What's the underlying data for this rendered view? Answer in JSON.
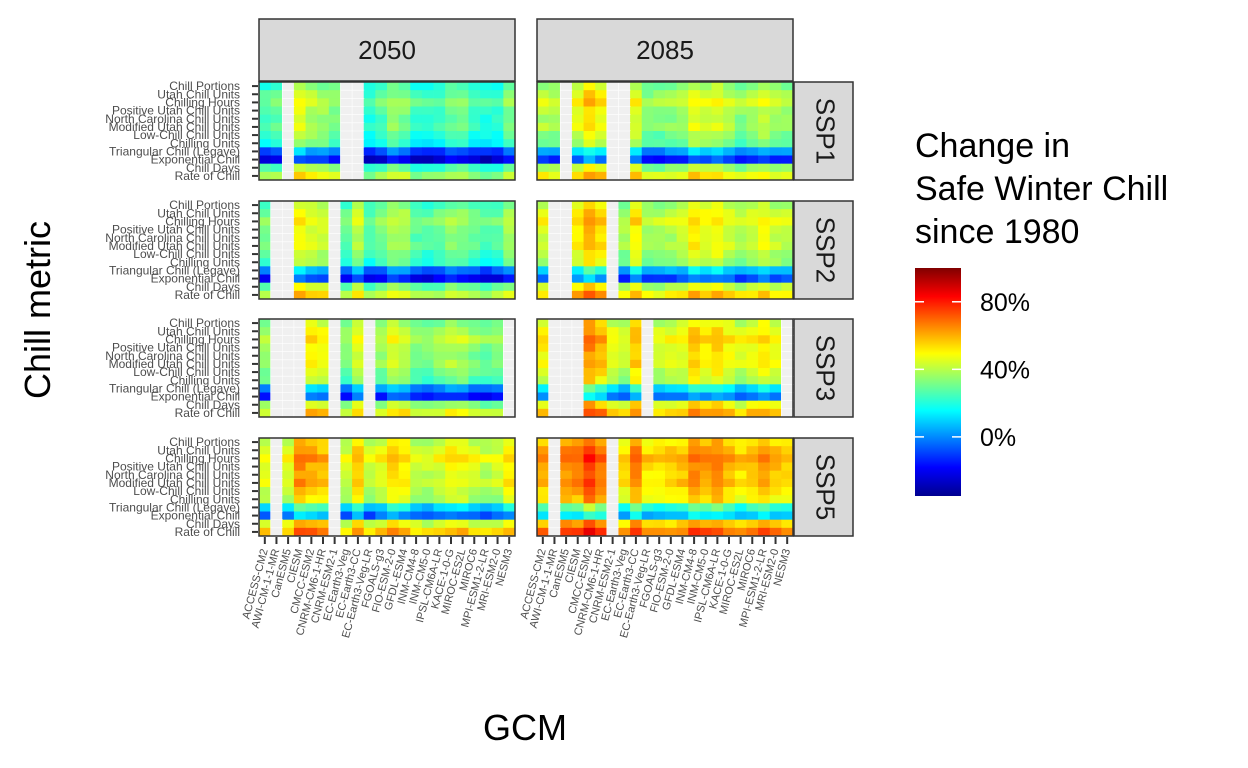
{
  "chart_data": {
    "type": "heatmap",
    "xlabel": "GCM",
    "ylabel": "Chill metric",
    "columns": [
      "2050",
      "2085"
    ],
    "rows": [
      "SSP1",
      "SSP2",
      "SSP3",
      "SSP5"
    ],
    "metrics": [
      "Chill Portions",
      "Utah Chill Units",
      "Chilling Hours",
      "Positive Utah Chill Units",
      "North Carolina Chill Units",
      "Modified Utah Chill Units",
      "Low-Chill Chill Units",
      "Chilling Units",
      "Triangular Chill (Legave)",
      "Exponential Chill",
      "Chill Days",
      "Rate of Chill"
    ],
    "gcms": [
      "ACCESS-CM2",
      "AWI-CM-1-1-MR",
      "CanESM5",
      "CIESM",
      "CMCC-ESM2",
      "CNRM-CM6-1-HR",
      "CNRM-ESM2-1",
      "EC-Earth3-Veg",
      "EC-Earth3-CC",
      "EC-Earth3-Veg-LR",
      "FGOALS-g3",
      "FIO-ESM-2-0",
      "GFDL-ESM4",
      "INM-CM4-8",
      "INM-CM5-0",
      "IPSL-CM6A-LR",
      "KACE-1-0-G",
      "MIROC-ES2L",
      "MIROC6",
      "MPI-ESM1-2-LR",
      "MRI-ESM2-0",
      "NESM3"
    ],
    "panels": [
      {
        "column": "2050",
        "row": "SSP1",
        "missing": [
          2,
          7,
          8
        ]
      },
      {
        "column": "2085",
        "row": "SSP1",
        "missing": [
          2,
          6,
          7
        ]
      },
      {
        "column": "2050",
        "row": "SSP2",
        "missing": [
          1,
          2,
          6
        ]
      },
      {
        "column": "2085",
        "row": "SSP2",
        "missing": [
          1,
          2,
          6
        ]
      },
      {
        "column": "2050",
        "row": "SSP3",
        "missing": [
          1,
          2,
          3,
          6,
          9,
          21
        ]
      },
      {
        "column": "2085",
        "row": "SSP3",
        "missing": [
          1,
          2,
          3,
          9,
          21
        ]
      },
      {
        "column": "2050",
        "row": "SSP5",
        "missing": [
          1,
          6
        ]
      },
      {
        "column": "2085",
        "row": "SSP5",
        "missing": [
          1,
          6
        ]
      }
    ],
    "metric_base_change_pct": [
      25,
      30,
      35,
      30,
      28,
      30,
      25,
      22,
      -5,
      -20,
      28,
      40
    ],
    "column_shift_pct": [
      0,
      10
    ],
    "row_shift_pct": [
      0,
      5,
      10,
      20
    ],
    "legend": {
      "title": [
        "Change in",
        "Safe Winter Chill",
        "since 1980"
      ],
      "ticks": [
        {
          "value": 80,
          "label": "80%"
        },
        {
          "value": 40,
          "label": "40%"
        },
        {
          "value": 0,
          "label": "0%"
        }
      ],
      "range": [
        -35,
        100
      ],
      "colors": [
        "#00008F",
        "#0000FF",
        "#0080FF",
        "#00FFFF",
        "#80FF80",
        "#FFFF00",
        "#FF8000",
        "#FF0000",
        "#800000"
      ],
      "position": "right"
    },
    "missing_color": "#F0F0F0"
  }
}
